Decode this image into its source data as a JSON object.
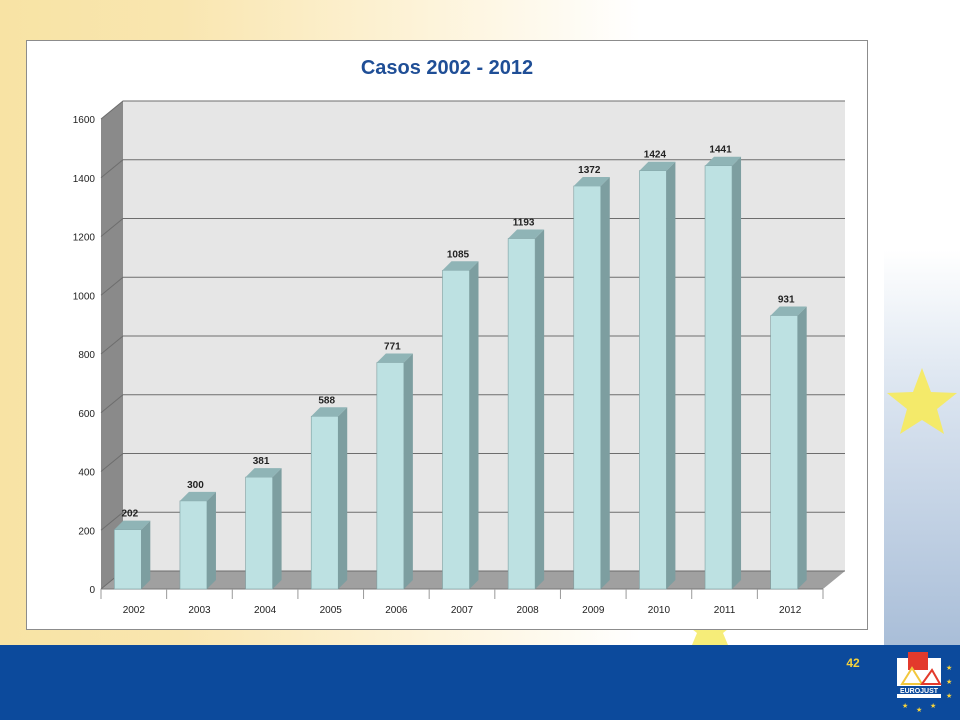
{
  "page": {
    "number": "42",
    "logo_text": "EUROJUST"
  },
  "colors": {
    "bar_face": "#bde1e2",
    "bar_side": "#7d9ea0",
    "bar_top": "#8fb4b6",
    "wall": "#e6e6e6",
    "side_wall": "#8a8a8a",
    "floor": "#a0a0a0",
    "title": "#1f4e96",
    "footer": "#0c4a9c",
    "page_number": "#f7d33b"
  },
  "chart_data": {
    "type": "bar",
    "title": "Casos 2002 - 2012",
    "xlabel": "",
    "ylabel": "",
    "categories": [
      "2002",
      "2003",
      "2004",
      "2005",
      "2006",
      "2007",
      "2008",
      "2009",
      "2010",
      "2011",
      "2012"
    ],
    "values": [
      202,
      300,
      381,
      588,
      771,
      1085,
      1193,
      1372,
      1424,
      1441,
      931
    ],
    "ylim": [
      0,
      1600
    ],
    "yticks": [
      0,
      200,
      400,
      600,
      800,
      1000,
      1200,
      1400,
      1600
    ],
    "grid": true,
    "legend": "none",
    "style": "3d-column"
  }
}
